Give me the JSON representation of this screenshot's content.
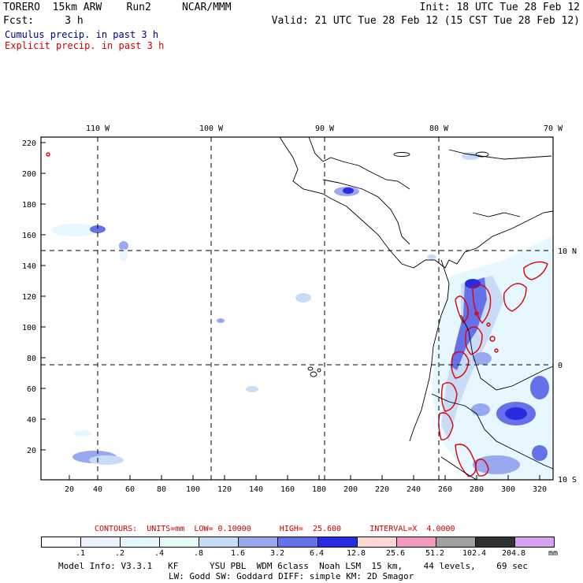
{
  "header": {
    "model": "TORERO  15km ARW    Run2     NCAR/MMM",
    "init": "Init: 18 UTC Tue 28 Feb 12",
    "fcst": "Fcst:     3 h",
    "valid": "Valid: 21 UTC Tue 28 Feb 12 (15 CST Tue 28 Feb 12)",
    "legend_cumulus": "Cumulus precip. in past 3 h",
    "legend_explicit": "Explicit precip. in past 3 h",
    "legend_cumulus_color": "#000080",
    "legend_explicit_color": "#cc0000"
  },
  "map": {
    "top_labels": [
      "110 W",
      "100 W",
      "90 W",
      "80 W",
      "70 W"
    ],
    "right_labels": [
      "10 N",
      "0",
      "10 S"
    ],
    "y_ticks": [
      "220",
      "200",
      "180",
      "160",
      "140",
      "120",
      "100",
      "80",
      "60",
      "40",
      "20"
    ],
    "x_ticks": [
      "20",
      "40",
      "60",
      "80",
      "100",
      "120",
      "140",
      "160",
      "180",
      "200",
      "220",
      "240",
      "260",
      "280",
      "300",
      "320"
    ]
  },
  "contours": {
    "text": "CONTOURS:  UNITS=mm  LOW= 0.10000      HIGH=  25.600      INTERVAL=X  4.0000"
  },
  "colorbar": {
    "labels": [
      ".1",
      ".2",
      ".4",
      ".8",
      "1.6",
      "3.2",
      "6.4",
      "12.8",
      "25.6",
      "51.2",
      "102.4",
      "204.8"
    ],
    "units": "mm",
    "colors": [
      "#ffffff",
      "#eef3ff",
      "#e6f7ff",
      "#e6fbf6",
      "#c8dcf8",
      "#9aa8f0",
      "#6670e8",
      "#2a2ae0",
      "#ffd6d6",
      "#f09ac0",
      "#a0a0a0",
      "#303030",
      "#d8a0f0"
    ]
  },
  "footer": {
    "line1": "Model Info: V3.3.1   KF      YSU PBL  WDM 6class  Noah LSM  15 km,    44 levels,    69 sec",
    "line2": "LW: Godd SW: Goddard DIFF: simple KM: 2D Smagor"
  }
}
